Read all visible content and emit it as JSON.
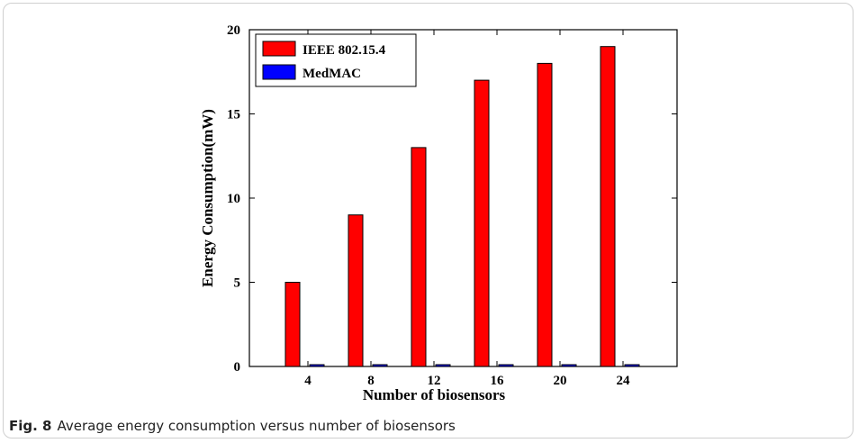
{
  "chart_data": {
    "type": "bar",
    "categories": [
      "4",
      "8",
      "12",
      "16",
      "20",
      "24"
    ],
    "series": [
      {
        "name": "IEEE 802.15.4",
        "values": [
          5,
          9,
          13,
          17,
          18,
          19
        ],
        "color": "#ff0000"
      },
      {
        "name": "MedMAC",
        "values": [
          0.1,
          0.1,
          0.1,
          0.1,
          0.1,
          0.1
        ],
        "color": "#0000ff"
      }
    ],
    "xlabel": "Number of biosensors",
    "ylabel": "Energy Consumption(mW)",
    "ylim": [
      0,
      20
    ],
    "yticks": [
      0,
      5,
      10,
      15,
      20
    ],
    "grid": false,
    "legend_position": "top-left"
  },
  "caption": {
    "label": "Fig. 8",
    "text": "Average energy consumption versus number of biosensors"
  }
}
